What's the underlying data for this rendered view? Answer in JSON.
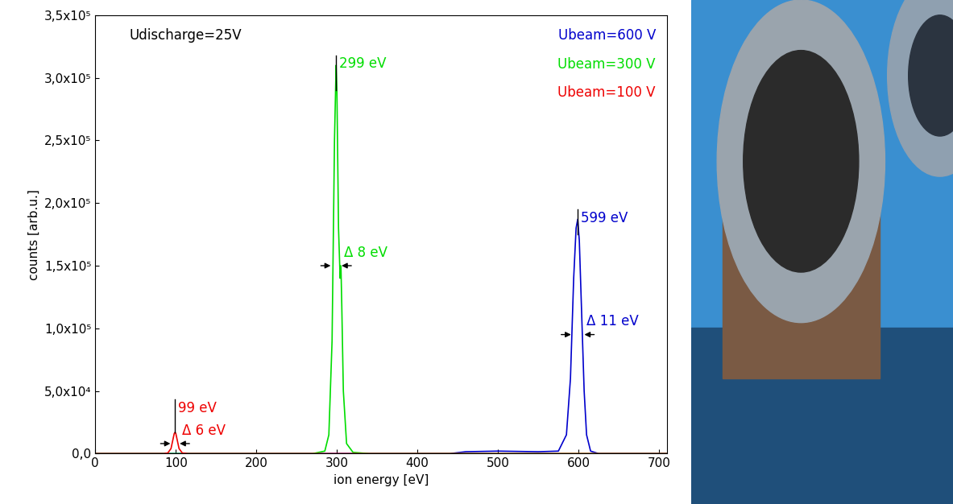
{
  "chart_data": {
    "type": "line",
    "x_label": "ion energy [eV]",
    "y_label": "counts [arb.u.]",
    "xlim": [
      0,
      710
    ],
    "xticks": [
      0,
      100,
      200,
      300,
      400,
      500,
      600,
      700
    ],
    "ylim": [
      0,
      350000
    ],
    "yticks": [
      {
        "value": 0,
        "label": "0,0"
      },
      {
        "value": 50000,
        "label": "5,0x10⁴"
      },
      {
        "value": 100000,
        "label": "1,0x10⁵"
      },
      {
        "value": 150000,
        "label": "1,5x10⁵"
      },
      {
        "value": 200000,
        "label": "2,0x10⁵"
      },
      {
        "value": 250000,
        "label": "2,5x10⁵"
      },
      {
        "value": 300000,
        "label": "3,0x10⁵"
      },
      {
        "value": 350000,
        "label": "3,5x10⁵"
      }
    ],
    "grid": false,
    "annotations": [
      {
        "text": "Udischarge=25V"
      }
    ],
    "series": [
      {
        "name": "Ubeam=600 V",
        "color": "#0000cc",
        "x": [
          0,
          440,
          460,
          500,
          550,
          575,
          585,
          590,
          594,
          597,
          599,
          601,
          604,
          607,
          610,
          615,
          625,
          710
        ],
        "values": [
          0,
          0,
          1500,
          2000,
          1500,
          2000,
          15000,
          60000,
          140000,
          180000,
          187000,
          170000,
          110000,
          50000,
          15000,
          2000,
          0,
          0
        ],
        "peak": {
          "label": "599 eV",
          "x": 599,
          "y_low": 175000,
          "y_high": 195000
        },
        "width": {
          "label": "Δ 11 eV",
          "x": 599,
          "width": 11,
          "y": 95000
        }
      },
      {
        "name": "Ubeam=300 V",
        "color": "#00dd00",
        "x": [
          0,
          270,
          285,
          290,
          294,
          297,
          299,
          300,
          302,
          304,
          305,
          306,
          308,
          312,
          320,
          340,
          710
        ],
        "values": [
          0,
          0,
          2000,
          15000,
          90000,
          250000,
          310000,
          290000,
          180000,
          140000,
          150000,
          120000,
          50000,
          8000,
          1000,
          0,
          0
        ],
        "peak": {
          "label": "299 eV",
          "x": 299,
          "y_low": 290000,
          "y_high": 318000
        },
        "width": {
          "label": "Δ 8 eV",
          "x": 299,
          "width": 8,
          "y": 150000
        }
      },
      {
        "name": "Ubeam=100 V",
        "color": "#ee0000",
        "x": [
          0,
          85,
          90,
          94,
          96,
          98,
          99,
          100,
          102,
          104,
          108,
          115,
          710
        ],
        "values": [
          0,
          0,
          500,
          4000,
          10000,
          16000,
          17000,
          16000,
          10000,
          4000,
          500,
          0,
          0
        ],
        "peak": {
          "label": "99 eV",
          "x": 99,
          "y_low": 17000,
          "y_high": 43000
        },
        "width": {
          "label": "Δ 6 eV",
          "x": 99,
          "width": 6,
          "y": 8000
        }
      }
    ]
  }
}
